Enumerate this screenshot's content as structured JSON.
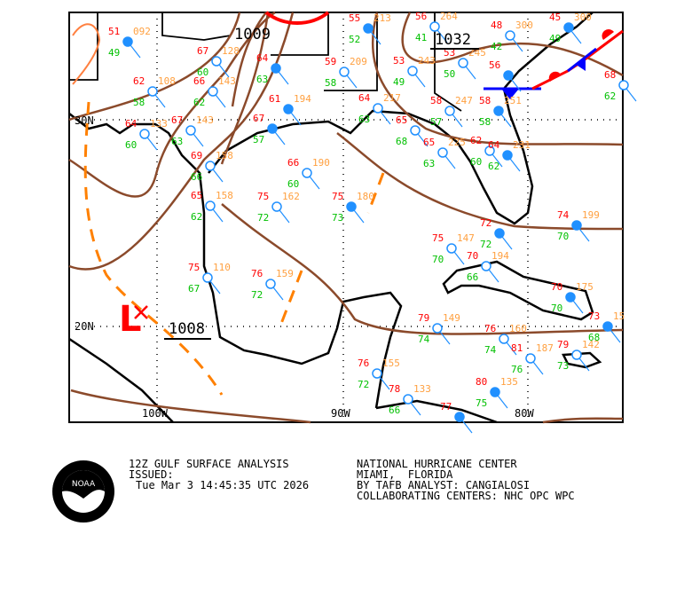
{
  "map": {
    "lat_labels": [
      "30N",
      "20N"
    ],
    "lon_labels": [
      "100W",
      "90W",
      "80W"
    ],
    "pressure_labels": {
      "high_east": "1032",
      "north": "1009",
      "west": "1008"
    },
    "low_symbol": "L",
    "colors": {
      "temperature": "#ff0000",
      "dewpoint": "#00c000",
      "pressure": "#ffa040",
      "station": "#2090ff",
      "isobar": "#8b4a2b",
      "trough": "#ff8000",
      "cold_front": "#0000ff",
      "warm_front": "#ff0000",
      "weather": "#e000e0"
    },
    "stations": [
      {
        "t": "51",
        "p": "092",
        "d": "49"
      },
      {
        "t": "67",
        "p": "128",
        "d": "60"
      },
      {
        "t": "66",
        "p": "143",
        "d": "62"
      },
      {
        "t": "64",
        "p": "",
        "d": "63"
      },
      {
        "t": "62",
        "p": "108",
        "d": "58"
      },
      {
        "t": "59",
        "p": "209",
        "d": "58"
      },
      {
        "t": "55",
        "p": "213",
        "d": "52"
      },
      {
        "t": "56",
        "p": "264",
        "d": "41"
      },
      {
        "t": "48",
        "p": "300",
        "d": "42"
      },
      {
        "t": "45",
        "p": "300",
        "d": "49"
      },
      {
        "t": "53",
        "p": "245",
        "d": "50"
      },
      {
        "t": "53",
        "p": "243",
        "d": "49"
      },
      {
        "t": "56",
        "p": "",
        "d": ""
      },
      {
        "t": "68",
        "p": "",
        "d": "62"
      },
      {
        "t": "64",
        "p": "217",
        "d": "63"
      },
      {
        "t": "61",
        "p": "194",
        "d": ""
      },
      {
        "t": "67",
        "p": "143",
        "d": "63"
      },
      {
        "t": "64",
        "p": "133",
        "d": "60"
      },
      {
        "t": "67",
        "p": "",
        "d": "57"
      },
      {
        "t": "65",
        "p": "",
        "d": "68"
      },
      {
        "t": "58",
        "p": "247",
        "d": "57"
      },
      {
        "t": "58",
        "p": "251",
        "d": "58"
      },
      {
        "t": "66",
        "p": "190",
        "d": "60"
      },
      {
        "t": "75",
        "p": "162",
        "d": "72"
      },
      {
        "t": "75",
        "p": "180",
        "d": "73"
      },
      {
        "t": "65",
        "p": "225",
        "d": "63"
      },
      {
        "t": "62",
        "p": "",
        "d": "60"
      },
      {
        "t": "64",
        "p": "231",
        "d": "62"
      },
      {
        "t": "65",
        "p": "158",
        "d": "62"
      },
      {
        "t": "69",
        "p": "158",
        "d": "66"
      },
      {
        "t": "74",
        "p": "199",
        "d": "70"
      },
      {
        "t": "75",
        "p": "147",
        "d": "70"
      },
      {
        "t": "70",
        "p": "194",
        "d": "66"
      },
      {
        "t": "72",
        "p": "",
        "d": "72"
      },
      {
        "t": "75",
        "p": "110",
        "d": "67"
      },
      {
        "t": "76",
        "p": "159",
        "d": "72"
      },
      {
        "t": "70",
        "p": "175",
        "d": "70"
      },
      {
        "t": "79",
        "p": "149",
        "d": "74"
      },
      {
        "t": "76",
        "p": "160",
        "d": "74"
      },
      {
        "t": "73",
        "p": "15",
        "d": "68"
      },
      {
        "t": "81",
        "p": "187",
        "d": "76"
      },
      {
        "t": "79",
        "p": "142",
        "d": "73"
      },
      {
        "t": "80",
        "p": "135",
        "d": "75"
      },
      {
        "t": "76",
        "p": "155",
        "d": "72"
      },
      {
        "t": "78",
        "p": "133",
        "d": "66"
      },
      {
        "t": "77",
        "p": "",
        "d": ""
      }
    ]
  },
  "footer": {
    "title": "12Z GULF SURFACE ANALYSIS",
    "issued_label": "ISSUED:",
    "issued_time": "Tue Mar 3 14:45:35 UTC 2026",
    "center": "NATIONAL HURRICANE CENTER",
    "location": "MIAMI,  FLORIDA",
    "analyst": "BY TAFB ANALYST: CANGIALOSI",
    "collaborating": "COLLABORATING CENTERS: NHC OPC WPC",
    "logo_text": "NOAA"
  }
}
